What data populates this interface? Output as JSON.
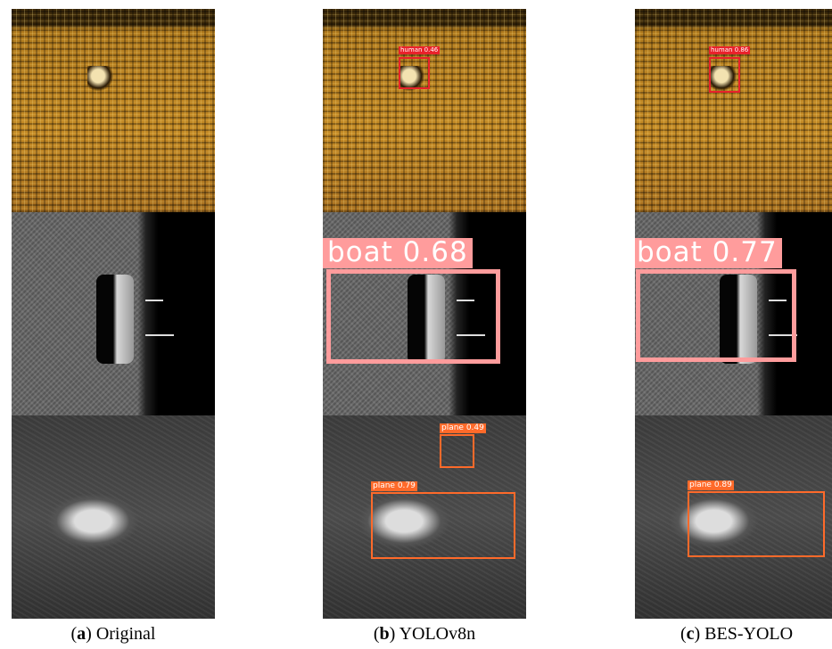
{
  "columns": [
    {
      "caption": {
        "open": "(",
        "letter": "a",
        "rest": ") Original"
      },
      "rows": [
        {
          "detections": []
        },
        {
          "detections": []
        },
        {
          "detections": []
        }
      ]
    },
    {
      "caption": {
        "open": "(",
        "letter": "b",
        "rest": ") YOLOv8n"
      },
      "rows": [
        {
          "detections": [
            {
              "label": "human 0.46"
            }
          ]
        },
        {
          "detections": [
            {
              "label": "boat 0.68"
            }
          ]
        },
        {
          "detections": [
            {
              "label": "plane 0.49"
            },
            {
              "label": "plane 0.79"
            }
          ]
        }
      ]
    },
    {
      "caption": {
        "open": "(",
        "letter": "c",
        "rest": ") BES-YOLO"
      },
      "rows": [
        {
          "detections": [
            {
              "label": "human 0.86"
            }
          ]
        },
        {
          "detections": [
            {
              "label": "boat 0.77"
            }
          ]
        },
        {
          "detections": [
            {
              "label": "plane 0.89"
            }
          ]
        }
      ]
    }
  ]
}
